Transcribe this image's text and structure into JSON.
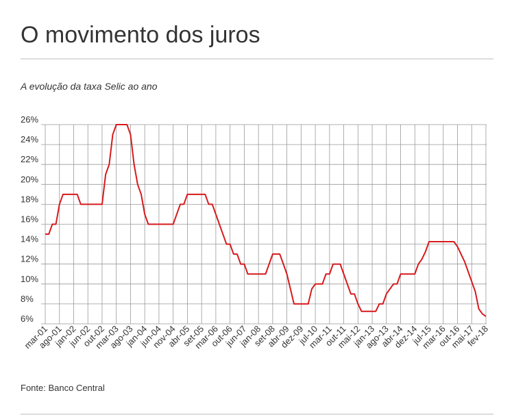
{
  "chart_data": {
    "type": "line",
    "title": "O movimento dos juros",
    "subtitle": "A evolução da taxa Selic ao ano",
    "source": "Fonte: Banco Central",
    "color": "#d7191c",
    "grid": true,
    "categories": [
      "mar-01",
      null,
      null,
      null,
      "ago-01",
      null,
      null,
      null,
      "jan-02",
      null,
      null,
      null,
      "jun-02",
      null,
      null,
      null,
      "out-02",
      null,
      null,
      null,
      "mar-03",
      null,
      null,
      null,
      "ago-03",
      null,
      null,
      null,
      "jan-04",
      null,
      null,
      null,
      "jun-04",
      null,
      null,
      null,
      "nov-04",
      null,
      null,
      null,
      "abr-05",
      null,
      null,
      null,
      "set-05",
      null,
      null,
      null,
      "mar-06",
      null,
      null,
      null,
      "out-06",
      null,
      null,
      null,
      "jun-07",
      null,
      null,
      null,
      "jan-08",
      null,
      null,
      null,
      "set-08",
      null,
      null,
      null,
      "abr-09",
      null,
      null,
      null,
      "dez-09",
      null,
      null,
      null,
      "jul-10",
      null,
      null,
      null,
      "mar-11",
      null,
      null,
      null,
      "out-11",
      null,
      null,
      null,
      "mai-12",
      null,
      null,
      null,
      "jan-13",
      null,
      null,
      null,
      "ago-13",
      null,
      null,
      null,
      "abr-14",
      null,
      null,
      null,
      "dez-14",
      null,
      null,
      null,
      "jul-15",
      null,
      null,
      null,
      "mar-16",
      null,
      null,
      null,
      "out-16",
      null,
      null,
      null,
      "mai-17",
      null,
      null,
      null,
      "fev-18"
    ],
    "values": [
      15,
      15,
      16,
      16,
      18,
      19,
      19,
      19,
      19,
      19,
      18,
      18,
      18,
      18,
      18,
      18,
      18,
      21,
      22,
      25,
      26,
      26,
      26,
      26,
      25,
      22,
      20,
      19,
      17,
      16,
      16,
      16,
      16,
      16,
      16,
      16,
      16,
      17,
      18,
      18,
      19,
      19,
      19,
      19,
      19,
      19,
      18,
      18,
      17,
      16,
      15,
      14,
      14,
      13,
      13,
      12,
      12,
      11,
      11,
      11,
      11,
      11,
      11,
      12,
      13,
      13,
      13,
      12,
      11,
      9.5,
      8,
      8,
      8,
      8,
      8,
      9.5,
      10,
      10,
      10,
      11,
      11,
      12,
      12,
      12,
      11,
      10,
      9,
      9,
      8,
      7.25,
      7.25,
      7.25,
      7.25,
      7.25,
      8,
      8,
      9,
      9.5,
      10,
      10,
      11,
      11,
      11,
      11,
      11,
      12,
      12.5,
      13.25,
      14.25,
      14.25,
      14.25,
      14.25,
      14.25,
      14.25,
      14.25,
      14.25,
      13.75,
      13,
      12.25,
      11.25,
      10.25,
      9.25,
      7.5,
      7,
      6.75
    ],
    "ylim": [
      6,
      26
    ],
    "yticks": [
      {
        "value": 6,
        "label": "6%"
      },
      {
        "value": 8,
        "label": "8%"
      },
      {
        "value": 10,
        "label": "10%"
      },
      {
        "value": 12,
        "label": "12%"
      },
      {
        "value": 14,
        "label": "14%"
      },
      {
        "value": 16,
        "label": "16%"
      },
      {
        "value": 18,
        "label": "18%"
      },
      {
        "value": 20,
        "label": "20%"
      },
      {
        "value": 22,
        "label": "22%"
      },
      {
        "value": 24,
        "label": "24%"
      },
      {
        "value": 26,
        "label": "26%"
      }
    ]
  }
}
